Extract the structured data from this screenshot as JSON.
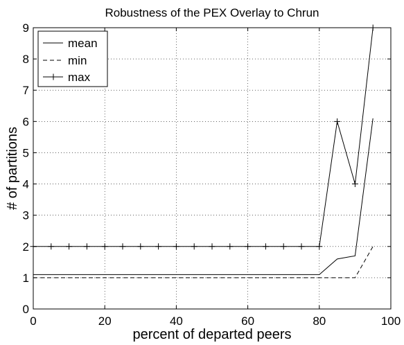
{
  "chart_data": {
    "type": "line",
    "title": "Robustness of the PEX Overlay to Chrun",
    "xlabel": "percent of departed peers",
    "ylabel": "# of partitions",
    "xlim": [
      0,
      100
    ],
    "ylim": [
      0,
      9
    ],
    "x_ticks": [
      0,
      20,
      40,
      60,
      80,
      100
    ],
    "y_ticks": [
      0,
      1,
      2,
      3,
      4,
      5,
      6,
      7,
      8,
      9
    ],
    "x_tick_labels": [
      "0",
      "20",
      "40",
      "60",
      "80",
      "100"
    ],
    "y_tick_labels": [
      "0",
      "1",
      "2",
      "3",
      "4",
      "5",
      "6",
      "7",
      "8",
      "9"
    ],
    "grid": true,
    "legend_position": "top-left",
    "x": [
      0,
      5,
      10,
      15,
      20,
      25,
      30,
      35,
      40,
      45,
      50,
      55,
      60,
      65,
      70,
      75,
      80,
      85,
      90,
      95
    ],
    "series": [
      {
        "name": "mean",
        "style": "solid",
        "marker": "none",
        "color": "#000000",
        "values": [
          1.1,
          1.1,
          1.1,
          1.1,
          1.1,
          1.1,
          1.1,
          1.1,
          1.1,
          1.1,
          1.1,
          1.1,
          1.1,
          1.1,
          1.1,
          1.1,
          1.1,
          1.6,
          1.7,
          6.1
        ]
      },
      {
        "name": "min",
        "style": "dashed",
        "marker": "none",
        "color": "#000000",
        "values": [
          1,
          1,
          1,
          1,
          1,
          1,
          1,
          1,
          1,
          1,
          1,
          1,
          1,
          1,
          1,
          1,
          1,
          1,
          1,
          2
        ]
      },
      {
        "name": "max",
        "style": "solid",
        "marker": "plus",
        "color": "#000000",
        "values": [
          2,
          2,
          2,
          2,
          2,
          2,
          2,
          2,
          2,
          2,
          2,
          2,
          2,
          2,
          2,
          2,
          2,
          6,
          4,
          9
        ]
      }
    ]
  }
}
